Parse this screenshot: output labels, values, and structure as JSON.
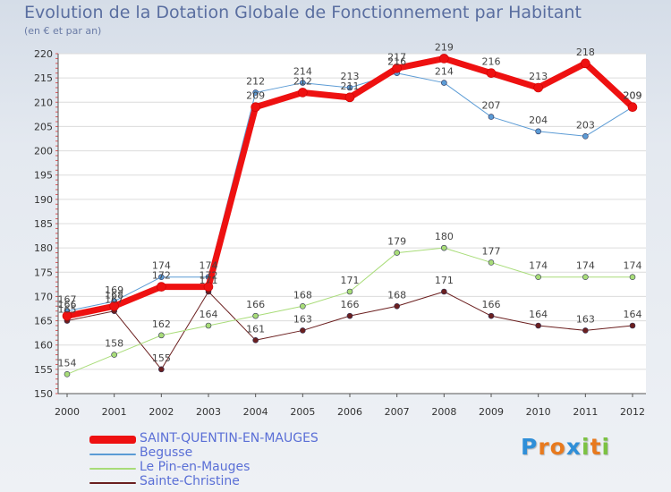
{
  "header": {
    "title": "Evolution de la Dotation Globale de Fonctionnement par Habitant",
    "subtitle": "(en € et par an)"
  },
  "logo": {
    "text": "Proxiti",
    "letters": [
      "P",
      "r",
      "o",
      "x",
      "i",
      "t",
      "i"
    ],
    "colors": [
      "#2f8fd8",
      "#e87a1e",
      "#e87a1e",
      "#2f8fd8",
      "#7cc243",
      "#e87a1e",
      "#7cc243"
    ]
  },
  "chart_data": {
    "type": "line",
    "title": "Evolution de la Dotation Globale de Fonctionnement par Habitant",
    "subtitle": "(en € et par an)",
    "x": [
      "2000",
      "2001",
      "2002",
      "2003",
      "2004",
      "2005",
      "2006",
      "2007",
      "2008",
      "2009",
      "2010",
      "2011",
      "2012"
    ],
    "ylim": [
      150,
      220
    ],
    "yticks": [
      150,
      155,
      160,
      165,
      170,
      175,
      180,
      185,
      190,
      195,
      200,
      205,
      210,
      215,
      220
    ],
    "grid": "horizontal",
    "series": [
      {
        "name": "SAINT-QUENTIN-EN-MAUGES",
        "color": "#ee1111",
        "values": [
          166,
          168,
          172,
          172,
          209,
          212,
          211,
          217,
          219,
          216,
          213,
          218,
          209
        ]
      },
      {
        "name": "Begusse",
        "color": "#5b9bd5",
        "values": [
          167,
          169,
          174,
          174,
          212,
          214,
          213,
          216,
          214,
          207,
          204,
          203,
          209
        ]
      },
      {
        "name": "Le Pin-en-Mauges",
        "color": "#a8dc78",
        "values": [
          154,
          158,
          162,
          164,
          166,
          168,
          171,
          179,
          180,
          177,
          174,
          174,
          174
        ]
      },
      {
        "name": "Sainte-Christine",
        "color": "#6b1f1f",
        "values": [
          165,
          167,
          155,
          171,
          161,
          163,
          166,
          168,
          171,
          166,
          164,
          163,
          164
        ]
      }
    ]
  }
}
